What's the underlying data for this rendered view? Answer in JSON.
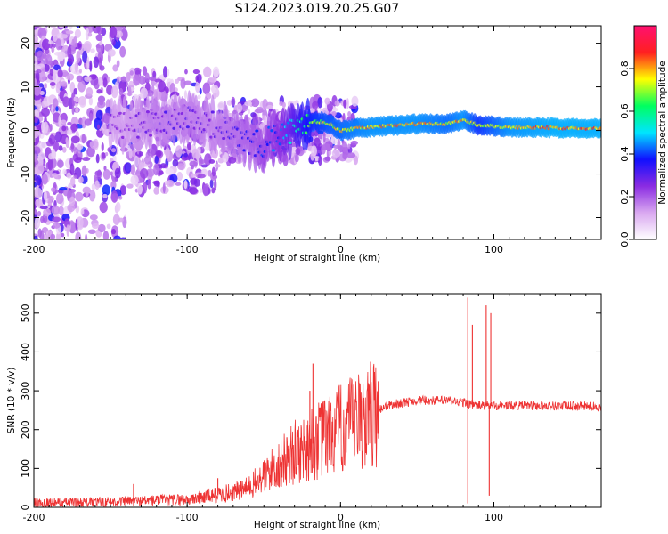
{
  "figure_title": "S124.2023.019.20.25.G07",
  "chart_data": [
    {
      "type": "heatmap",
      "title": "",
      "xlabel": "Height of straight line (km)",
      "ylabel": "Frequency (Hz)",
      "xlim": [
        -200,
        170
      ],
      "ylim": [
        -25,
        24
      ],
      "xticks": [
        -200,
        -100,
        0,
        100
      ],
      "yticks": [
        -20,
        -10,
        0,
        10,
        20
      ],
      "colorbar": {
        "label": "Normalized spectral amplitude",
        "range": [
          0.0,
          1.0
        ],
        "ticks": [
          0.0,
          0.2,
          0.4,
          0.6,
          0.8
        ],
        "tick_labels": [
          "0.0",
          "0.2",
          "0.4",
          "0.6",
          "0.8"
        ],
        "colormap": [
          "#ffffff",
          "#d9a8f0",
          "#8a2be2",
          "#1010ff",
          "#00e5ff",
          "#00ff60",
          "#ffff00",
          "#ff2020",
          "#ff1070"
        ]
      },
      "ridge": {
        "x": [
          -140,
          -120,
          -100,
          -80,
          -60,
          -50,
          -40,
          -30,
          -20,
          -10,
          0,
          20,
          50,
          70,
          80,
          90,
          110,
          140,
          170
        ],
        "freq": [
          1.0,
          2.0,
          3.0,
          1.0,
          -3.0,
          -3.0,
          -1.0,
          0.0,
          2.0,
          2.0,
          0.0,
          0.8,
          1.5,
          1.5,
          2.5,
          1.2,
          0.8,
          0.6,
          0.5
        ],
        "amplitude": [
          0.25,
          0.3,
          0.3,
          0.3,
          0.35,
          0.4,
          0.45,
          0.55,
          0.7,
          0.75,
          0.78,
          0.82,
          0.82,
          0.78,
          0.82,
          0.72,
          0.82,
          0.85,
          0.85
        ]
      }
    },
    {
      "type": "line",
      "title": "",
      "xlabel": "Height of straight line (km)",
      "ylabel": "SNR (10 * v/v)",
      "xlim": [
        -200,
        170
      ],
      "ylim": [
        0,
        550
      ],
      "xticks": [
        -200,
        -100,
        0,
        100
      ],
      "yticks": [
        0,
        100,
        200,
        300,
        400,
        500
      ],
      "color": "#ee3333",
      "baseline": {
        "x": [
          -200,
          -150,
          -100,
          -75,
          -60,
          -50,
          -40,
          -30,
          -20,
          -10,
          0,
          10,
          20,
          30,
          50,
          70,
          80,
          90,
          100,
          120,
          170
        ],
        "y": [
          12,
          14,
          20,
          35,
          50,
          80,
          110,
          140,
          160,
          180,
          200,
          215,
          240,
          262,
          275,
          275,
          270,
          262,
          262,
          262,
          260
        ]
      },
      "spikes": [
        {
          "x": -135,
          "y": 60
        },
        {
          "x": -80,
          "y": 75
        },
        {
          "x": -35,
          "y": 180
        },
        {
          "x": -20,
          "y": 300
        },
        {
          "x": -18,
          "y": 370
        },
        {
          "x": -10,
          "y": 250
        },
        {
          "x": 83,
          "y": 540
        },
        {
          "x": 83,
          "y": 10
        },
        {
          "x": 86,
          "y": 470
        },
        {
          "x": 95,
          "y": 520
        },
        {
          "x": 98,
          "y": 500
        },
        {
          "x": 97,
          "y": 30
        }
      ]
    }
  ]
}
